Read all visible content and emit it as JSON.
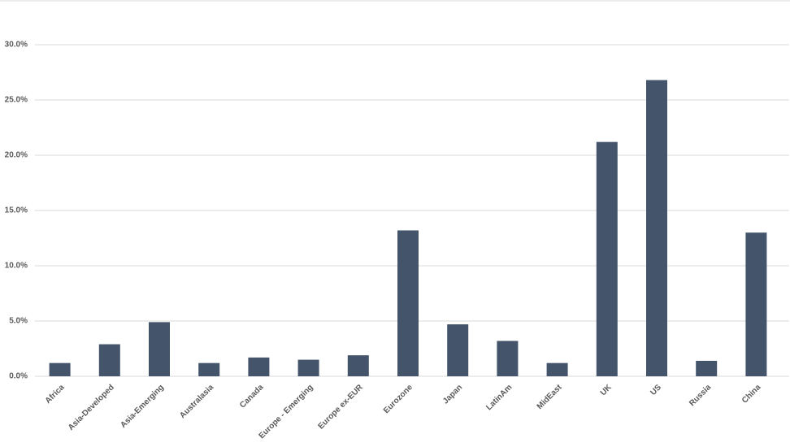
{
  "chart_data": {
    "type": "bar",
    "categories": [
      "Africa",
      "Asia-Developed",
      "Asia-Emerging",
      "Australasia",
      "Canada",
      "Europe - Emerging",
      "Europe ex-EUR",
      "Eurozone",
      "Japan",
      "LatinAm",
      "MidEast",
      "UK",
      "US",
      "Russia",
      "China"
    ],
    "values": [
      1.2,
      2.9,
      4.9,
      1.2,
      1.7,
      1.5,
      1.9,
      13.2,
      4.7,
      3.2,
      1.2,
      21.2,
      26.8,
      1.4,
      13.0
    ],
    "color": "#44546a",
    "ylim": [
      0,
      30
    ],
    "yticks": [
      {
        "value": 0,
        "label": "0.0%"
      },
      {
        "value": 5,
        "label": "5.0%"
      },
      {
        "value": 10,
        "label": "10.0%"
      },
      {
        "value": 15,
        "label": "15.0%"
      },
      {
        "value": 20,
        "label": "20.0%"
      },
      {
        "value": 25,
        "label": "25.0%"
      },
      {
        "value": 30,
        "label": "30.0%"
      }
    ],
    "grid": true
  }
}
